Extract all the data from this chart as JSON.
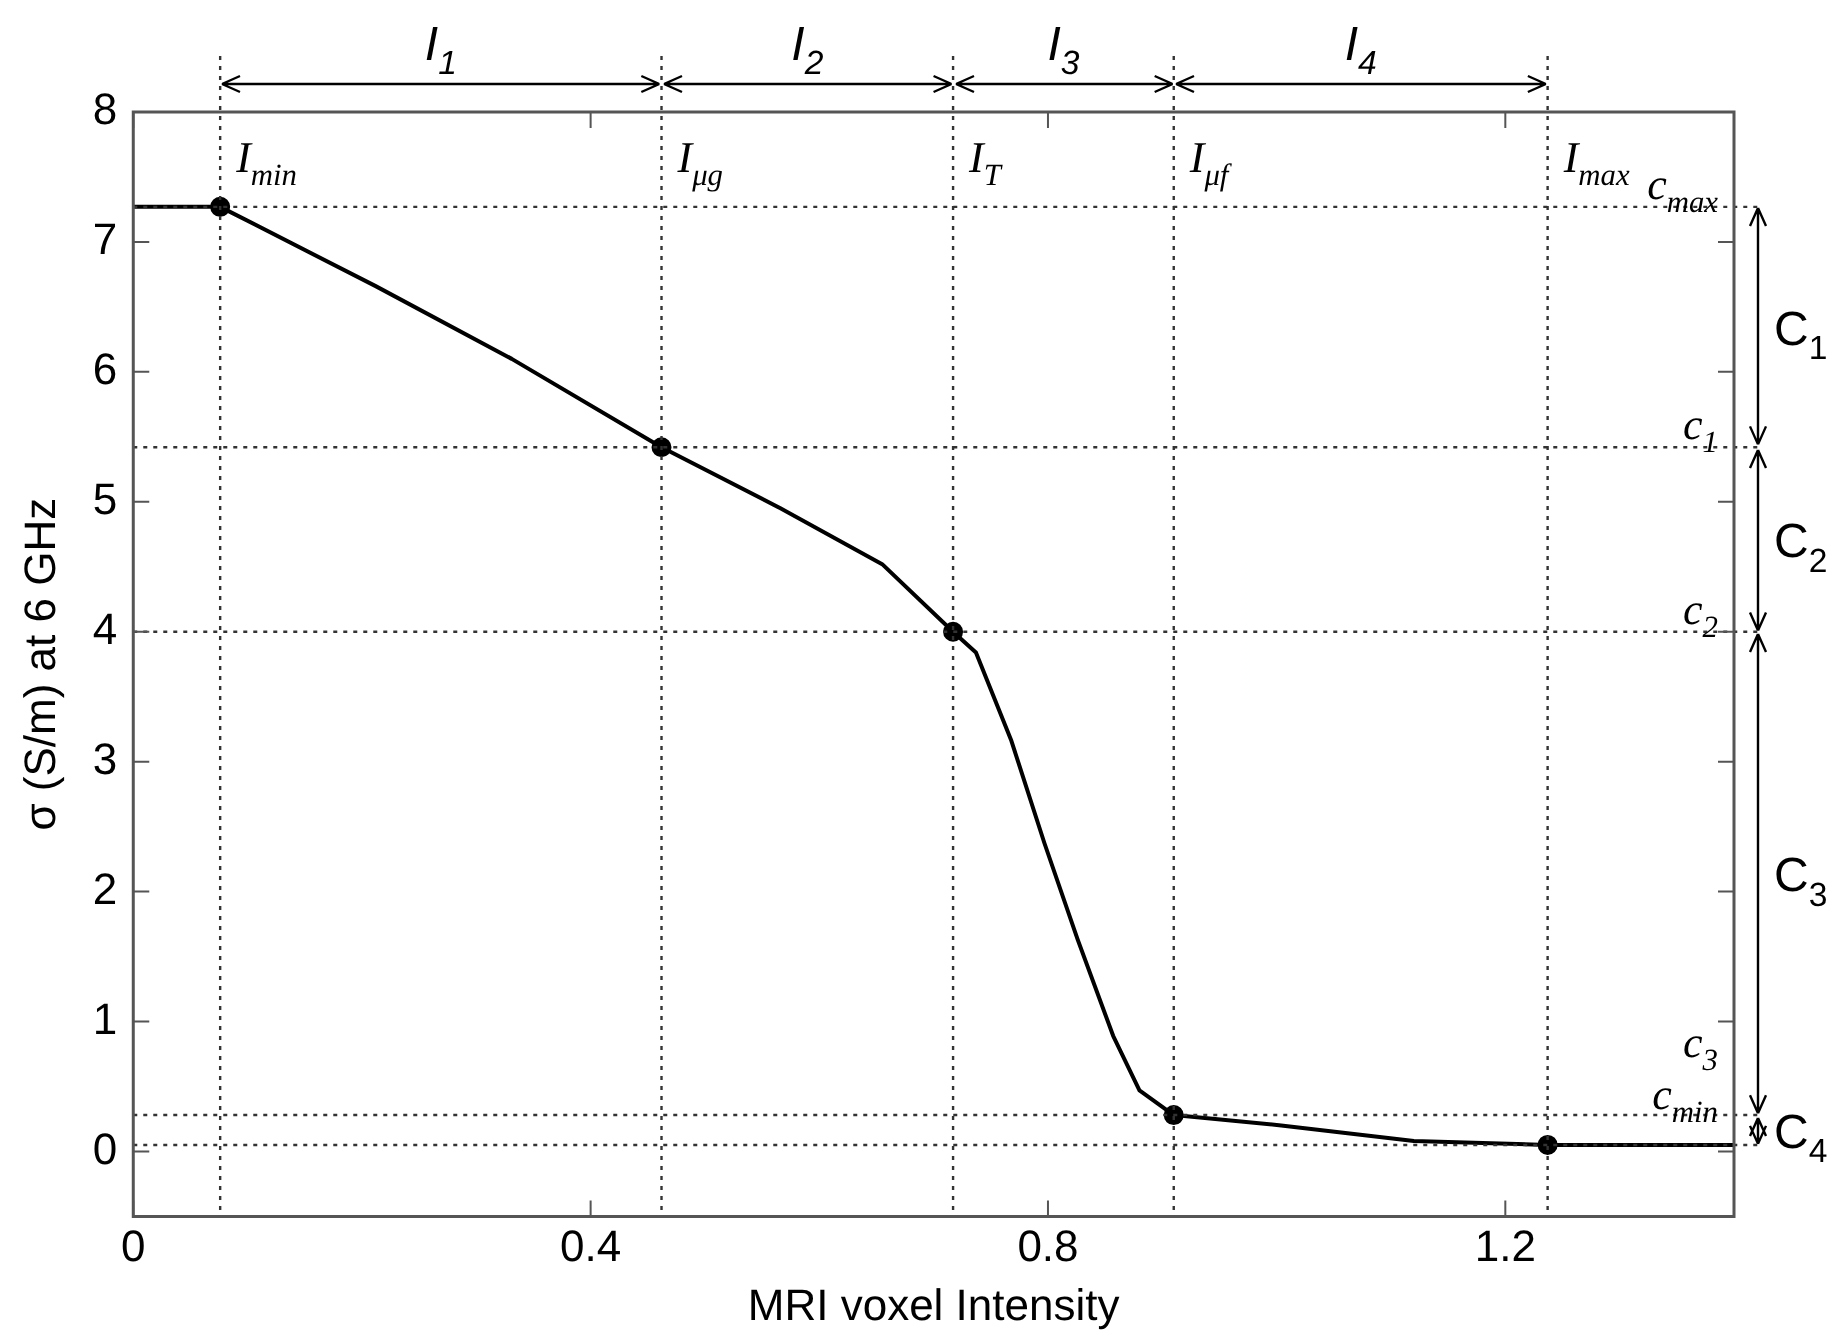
{
  "chart_data": {
    "type": "line",
    "xlabel": "MRI voxel Intensity",
    "ylabel": "σ (S/m) at 6 GHz",
    "xlim": [
      0,
      1.4
    ],
    "ylim": [
      -0.5,
      8
    ],
    "xticks": [
      0,
      0.4,
      0.8,
      1.2
    ],
    "yticks": [
      0,
      1,
      2,
      3,
      4,
      5,
      6,
      7,
      8
    ],
    "grid": false,
    "legend": false,
    "series": [
      {
        "color": "#000000",
        "marker": "none",
        "line_style": "solid",
        "x": [
          0,
          0.076,
          0.212,
          0.331,
          0.462,
          0.566,
          0.655,
          0.717,
          0.737,
          0.768,
          0.797,
          0.826,
          0.857,
          0.88,
          0.91,
          1.004,
          1.12,
          1.237,
          1.4
        ],
        "values": [
          7.27,
          7.27,
          6.66,
          6.1,
          5.42,
          4.95,
          4.52,
          4,
          3.84,
          3.16,
          2.37,
          1.63,
          0.89,
          0.47,
          0.28,
          0.2,
          0.08,
          0.05,
          0.05
        ]
      },
      {
        "type": "scatter",
        "color": "#000000",
        "marker": "circle",
        "x": [
          0.076,
          0.462,
          0.717,
          0.91,
          1.237
        ],
        "values": [
          7.27,
          5.42,
          4,
          0.28,
          0.05
        ]
      }
    ],
    "ref_lines": [
      {
        "axis": "x",
        "value": 0.076,
        "label": "I$_{min}$",
        "line_style": "dotted",
        "color": "#333333"
      },
      {
        "axis": "x",
        "value": 0.462,
        "label": "I$_{μg}$",
        "line_style": "dotted",
        "color": "#333333"
      },
      {
        "axis": "x",
        "value": 0.717,
        "label": "I$_{T}$",
        "line_style": "dotted",
        "color": "#333333"
      },
      {
        "axis": "x",
        "value": 0.91,
        "label": "I$_{μf}$",
        "line_style": "dotted",
        "color": "#333333"
      },
      {
        "axis": "x",
        "value": 1.237,
        "label": "I$_{max}$",
        "line_style": "dotted",
        "color": "#333333"
      },
      {
        "axis": "y",
        "value": 7.27,
        "label": "c$_{max}$",
        "line_style": "dotted",
        "color": "#333333"
      },
      {
        "axis": "y",
        "value": 5.42,
        "label": "c$_{1}$",
        "line_style": "dotted",
        "color": "#333333"
      },
      {
        "axis": "y",
        "value": 4,
        "label": "c$_{2}$",
        "line_style": "dotted",
        "color": "#333333"
      },
      {
        "axis": "y",
        "value": 0.28,
        "label": "c$_{3}$",
        "line_style": "dotted",
        "color": "#333333"
      },
      {
        "axis": "y",
        "value": 0.05,
        "label": "c$_{min}$",
        "line_style": "dotted",
        "color": "#333333"
      }
    ],
    "annotations": [
      "I$_{1}$",
      "I$_{2}$",
      "I$_{3}$",
      "I$_{4}$",
      "C$_{1}$",
      "C$_{2}$",
      "C$_{3}$",
      "C$_{4}$"
    ]
  }
}
